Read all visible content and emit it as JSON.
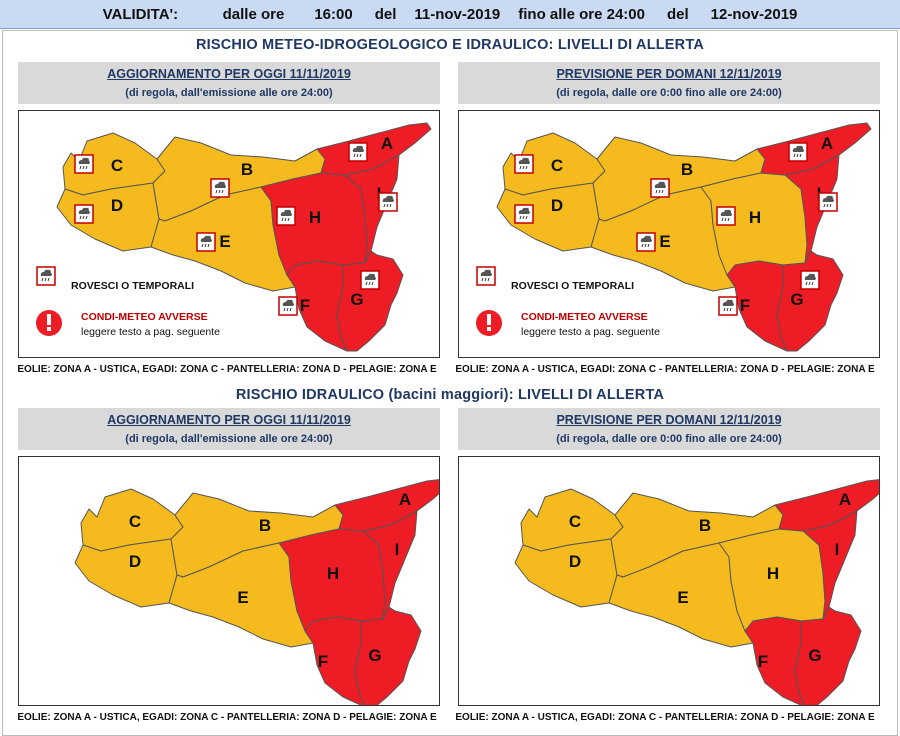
{
  "validity": {
    "label": "VALIDITA':",
    "from_word": "dalle ore",
    "from_time": "16:00",
    "del1": "del",
    "from_date": "11-nov-2019",
    "until_word": "fino alle ore 24:00",
    "del2": "del",
    "to_date": "12-nov-2019"
  },
  "section1_title": "RISCHIO METEO-IDROGEOLOGICO E IDRAULICO: LIVELLI DI ALLERTA",
  "section2_title": "RISCHIO IDRAULICO (bacini maggiori): LIVELLI DI ALLERTA",
  "panels": {
    "today_title": "AGGIORNAMENTO PER OGGI 11/11/2019",
    "today_sub": "(di regola, dall'emissione alle ore 24:00)",
    "tomorrow_title": "PREVISIONE PER DOMANI 12/11/2019",
    "tomorrow_sub": "(di regola, dalle ore 0:00 fino alle ore 24:00)"
  },
  "legend": {
    "storms": "ROVESCI O TEMPORALI",
    "adverse": "CONDI-METEO AVVERSE",
    "read_text": "leggere testo a pag. seguente"
  },
  "footnote": "EOLIE: ZONA A - USTICA, EGADI: ZONA C - PANTELLERIA: ZONA D - PELAGIE: ZONA E",
  "colors": {
    "yellow": "#f5bb1e",
    "red": "#ee1c24",
    "orange_text": "#1f3864"
  },
  "zone_labels": [
    "A",
    "B",
    "C",
    "D",
    "E",
    "F",
    "G",
    "H",
    "I"
  ],
  "alert_levels": {
    "map1_today": {
      "A": "red",
      "B": "yellow",
      "C": "yellow",
      "D": "yellow",
      "E": "yellow",
      "F": "red",
      "G": "red",
      "H": "red",
      "I": "red"
    },
    "map2_tomorrow": {
      "A": "red",
      "B": "yellow",
      "C": "yellow",
      "D": "yellow",
      "E": "yellow",
      "F": "red",
      "G": "red",
      "H": "yellow",
      "I": "red"
    },
    "map3_today": {
      "A": "red",
      "B": "yellow",
      "C": "yellow",
      "D": "yellow",
      "E": "yellow",
      "F": "red",
      "G": "red",
      "H": "red",
      "I": "red"
    },
    "map4_tomorrow": {
      "A": "red",
      "B": "yellow",
      "C": "yellow",
      "D": "yellow",
      "E": "yellow",
      "F": "red",
      "G": "red",
      "H": "yellow",
      "I": "red"
    }
  },
  "storm_icons": {
    "map1_today": [
      "A",
      "B",
      "C",
      "D",
      "E",
      "F",
      "G",
      "H",
      "I"
    ],
    "map2_tomorrow": [
      "A",
      "B",
      "C",
      "D",
      "E",
      "F",
      "G",
      "H",
      "I"
    ]
  }
}
